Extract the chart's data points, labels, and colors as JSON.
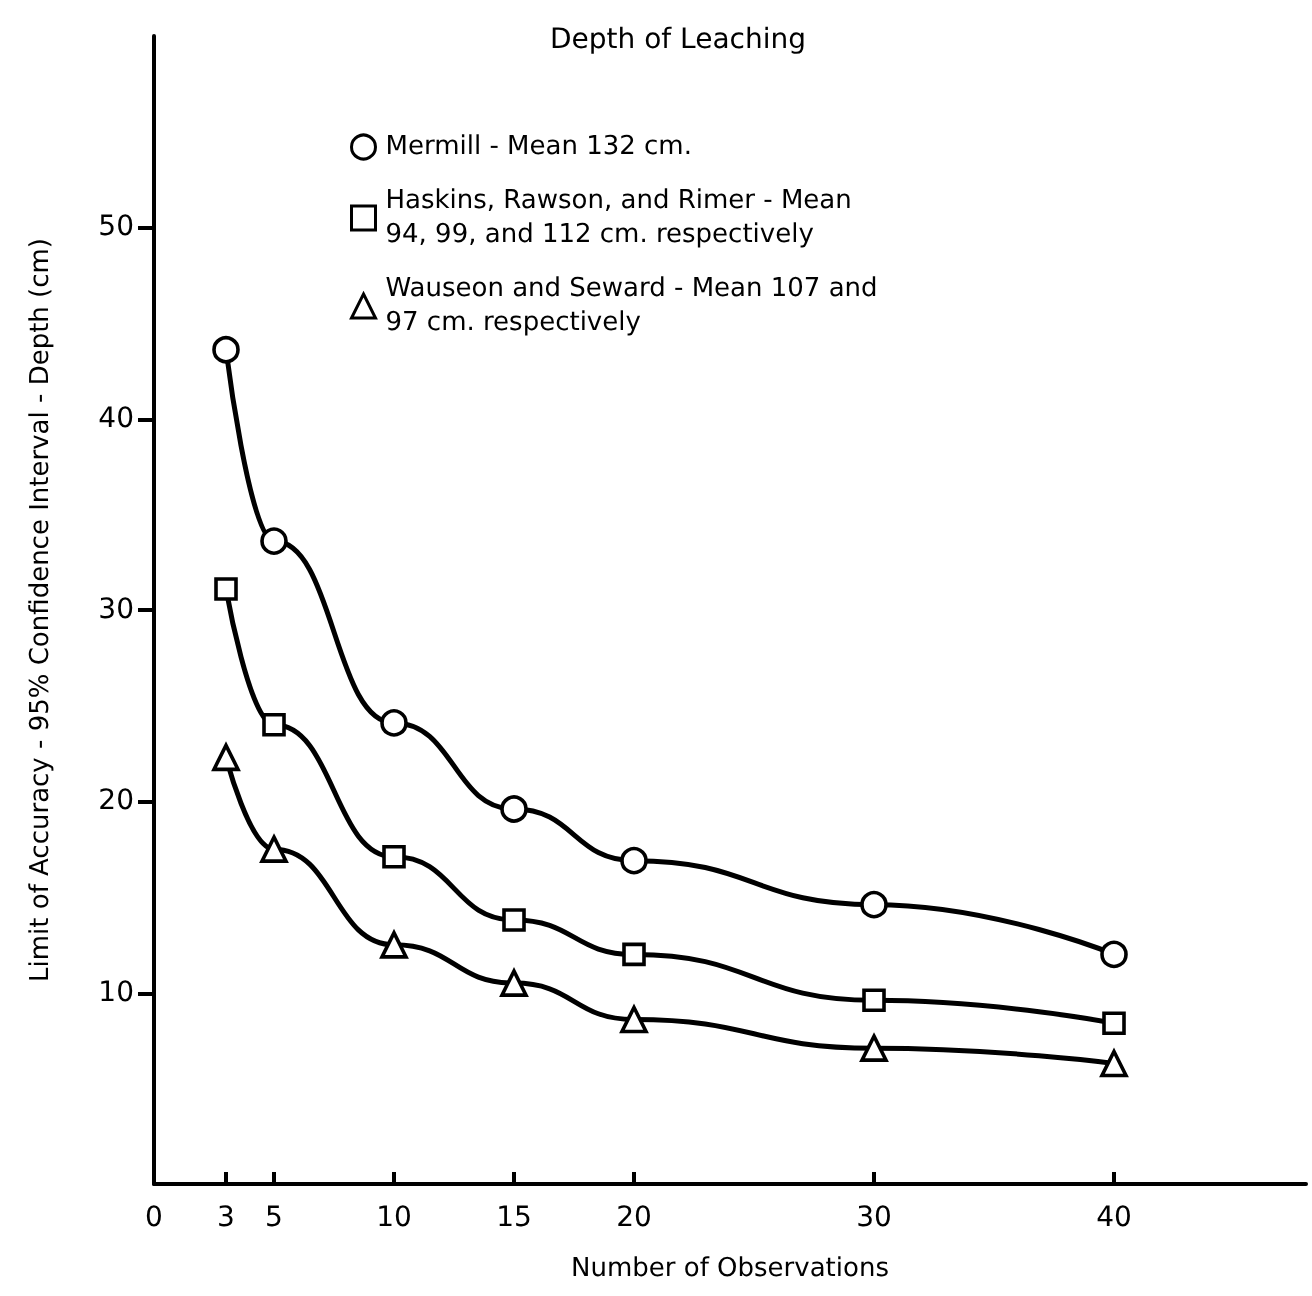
{
  "chart_data": {
    "type": "line",
    "title": "Depth of Leaching",
    "xlabel": "Number of Observations",
    "ylabel": "Limit of Accuracy - 95% Confidence Interval - Depth (cm)",
    "series": [
      {
        "name": "Mermill - Mean 132 cm.",
        "color": "#000000",
        "marker": "circle",
        "x": [
          3,
          5,
          10,
          15,
          20,
          30,
          40
        ],
        "values": [
          43.6,
          33.6,
          24.1,
          19.6,
          16.9,
          14.6,
          12.0
        ]
      },
      {
        "name": "Haskins, Rawson, and Rimer - Mean\n94, 99, and 112 cm. respectively",
        "color": "#000000",
        "marker": "square",
        "x": [
          3,
          5,
          10,
          15,
          20,
          30,
          40
        ],
        "values": [
          31.1,
          24.0,
          17.1,
          13.8,
          12.0,
          9.6,
          8.4
        ]
      },
      {
        "name": "Wauseon and Seward - Mean 107 and\n97 cm. respectively",
        "color": "#000000",
        "marker": "triangle",
        "x": [
          3,
          5,
          10,
          15,
          20,
          30,
          40
        ],
        "values": [
          22.3,
          17.5,
          12.5,
          10.5,
          8.6,
          7.1,
          6.3
        ]
      }
    ],
    "xlim": [
      0,
      48
    ],
    "xticks": [
      0,
      3,
      5,
      10,
      15,
      20,
      30,
      40
    ],
    "ylim": [
      0,
      60
    ],
    "yticks": [
      10,
      20,
      30,
      40,
      50
    ],
    "grid": false,
    "legend": "top",
    "line_style": "solid"
  }
}
